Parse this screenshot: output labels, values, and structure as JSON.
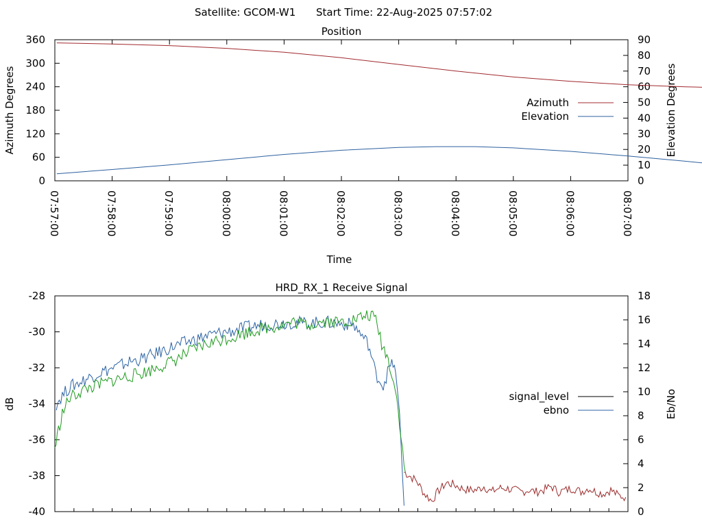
{
  "header": {
    "satellite_label": "Satellite: GCOM-W1",
    "start_time_label": "Start Time: 22-Aug-2025 07:57:02"
  },
  "chart_data": [
    {
      "type": "line",
      "title": "Position",
      "xlabel": "Time",
      "ylabel": "Azimuth Degrees",
      "y2label": "Elevation Degrees",
      "x_ticks": [
        "07:57:00",
        "07:58:00",
        "07:59:00",
        "08:00:00",
        "08:01:00",
        "08:02:00",
        "08:03:00",
        "08:04:00",
        "08:05:00",
        "08:06:00",
        "08:07:00"
      ],
      "y_ticks": [
        "0",
        "60",
        "120",
        "180",
        "240",
        "300",
        "360"
      ],
      "y2_ticks": [
        "0",
        "10",
        "20",
        "30",
        "40",
        "50",
        "60",
        "70",
        "80",
        "90"
      ],
      "ylim": [
        0,
        360
      ],
      "y2lim": [
        0,
        90
      ],
      "x_seconds_range": [
        0,
        600
      ],
      "legend_position": "right",
      "series": [
        {
          "name": "Azimuth",
          "axis": "left",
          "color": "#a0282d",
          "points": [
            [
              2,
              352
            ],
            [
              60,
              349
            ],
            [
              120,
              345
            ],
            [
              180,
              338
            ],
            [
              240,
              328
            ],
            [
              300,
              314
            ],
            [
              360,
              297
            ],
            [
              420,
              280
            ],
            [
              480,
              265
            ],
            [
              540,
              254
            ],
            [
              600,
              245
            ],
            [
              660,
              240
            ],
            [
              720,
              236
            ],
            [
              765,
              235
            ]
          ]
        },
        {
          "name": "Elevation",
          "axis": "right",
          "color": "#2b5f9e",
          "points": [
            [
              2,
              4.5
            ],
            [
              60,
              7.2
            ],
            [
              120,
              10.2
            ],
            [
              180,
              13.5
            ],
            [
              240,
              16.8
            ],
            [
              300,
              19.5
            ],
            [
              360,
              21.3
            ],
            [
              400,
              21.8
            ],
            [
              440,
              21.8
            ],
            [
              480,
              21.0
            ],
            [
              540,
              18.8
            ],
            [
              600,
              15.8
            ],
            [
              660,
              12.5
            ],
            [
              720,
              9.0
            ],
            [
              765,
              5.5
            ]
          ]
        }
      ]
    },
    {
      "type": "line",
      "title": "HRD_RX_1 Receive Signal",
      "ylabel": "dB",
      "y2label": "Eb/No",
      "y_ticks": [
        "-40",
        "-38",
        "-36",
        "-34",
        "-32",
        "-30",
        "-28"
      ],
      "y2_ticks": [
        "0",
        "2",
        "4",
        "6",
        "8",
        "10",
        "12",
        "14",
        "16",
        "18"
      ],
      "ylim": [
        -40,
        -28
      ],
      "y2lim": [
        0,
        18
      ],
      "legend_position": "right",
      "series": [
        {
          "name": "signal_level",
          "axis": "left",
          "color": "#9b2a2a",
          "points": [
            [
              468,
              -37.8
            ],
            [
              475,
              -38.0
            ],
            [
              485,
              -38.3
            ],
            [
              495,
              -39.0
            ],
            [
              505,
              -39.4
            ],
            [
              515,
              -38.8
            ],
            [
              525,
              -38.4
            ],
            [
              535,
              -38.5
            ],
            [
              545,
              -38.7
            ],
            [
              555,
              -38.8
            ],
            [
              565,
              -38.8
            ],
            [
              575,
              -38.6
            ],
            [
              585,
              -38.9
            ],
            [
              595,
              -38.7
            ],
            [
              605,
              -38.7
            ],
            [
              615,
              -38.8
            ],
            [
              625,
              -38.9
            ],
            [
              635,
              -38.8
            ],
            [
              645,
              -38.9
            ],
            [
              655,
              -38.8
            ],
            [
              665,
              -38.6
            ],
            [
              675,
              -38.9
            ],
            [
              685,
              -38.8
            ],
            [
              695,
              -38.7
            ],
            [
              705,
              -38.9
            ],
            [
              715,
              -38.7
            ],
            [
              725,
              -38.9
            ],
            [
              735,
              -39.0
            ],
            [
              745,
              -38.8
            ],
            [
              755,
              -39.1
            ],
            [
              765,
              -39.2
            ]
          ]
        },
        {
          "name": "ebno",
          "axis": "right",
          "color": "#2b62a3",
          "points": [
            [
              2,
              9.0
            ],
            [
              10,
              9.7
            ],
            [
              20,
              10.4
            ],
            [
              40,
              11.0
            ],
            [
              60,
              11.6
            ],
            [
              80,
              12.0
            ],
            [
              100,
              12.5
            ],
            [
              120,
              12.8
            ],
            [
              140,
              13.3
            ],
            [
              160,
              13.8
            ],
            [
              180,
              14.2
            ],
            [
              200,
              14.6
            ],
            [
              220,
              14.9
            ],
            [
              240,
              15.1
            ],
            [
              260,
              15.4
            ],
            [
              280,
              15.6
            ],
            [
              300,
              15.7
            ],
            [
              320,
              15.8
            ],
            [
              340,
              15.7
            ],
            [
              360,
              15.8
            ],
            [
              380,
              15.7
            ],
            [
              400,
              15.6
            ],
            [
              410,
              14.8
            ],
            [
              420,
              14.0
            ],
            [
              430,
              11.5
            ],
            [
              440,
              10.5
            ],
            [
              448,
              12.0
            ],
            [
              455,
              12.4
            ],
            [
              462,
              8.0
            ],
            [
              466,
              3.0
            ],
            [
              468,
              0.5
            ]
          ]
        },
        {
          "name": "",
          "axis": "right",
          "color": "#1e9a1e",
          "points": [
            [
              0,
              5.3
            ],
            [
              5,
              6.8
            ],
            [
              10,
              8.2
            ],
            [
              20,
              9.5
            ],
            [
              40,
              10.2
            ],
            [
              60,
              10.6
            ],
            [
              80,
              11.0
            ],
            [
              100,
              11.3
            ],
            [
              120,
              11.6
            ],
            [
              140,
              12.1
            ],
            [
              160,
              12.6
            ],
            [
              180,
              13.3
            ],
            [
              200,
              13.9
            ],
            [
              220,
              14.3
            ],
            [
              240,
              14.6
            ],
            [
              260,
              15.0
            ],
            [
              280,
              15.3
            ],
            [
              300,
              15.5
            ],
            [
              320,
              15.8
            ],
            [
              340,
              15.6
            ],
            [
              360,
              15.9
            ],
            [
              380,
              15.8
            ],
            [
              400,
              16.0
            ],
            [
              410,
              16.2
            ],
            [
              420,
              16.4
            ],
            [
              430,
              16.1
            ],
            [
              438,
              14.0
            ],
            [
              445,
              13.0
            ],
            [
              452,
              11.5
            ],
            [
              458,
              9.5
            ],
            [
              462,
              7.5
            ],
            [
              466,
              5.0
            ],
            [
              470,
              3.2
            ]
          ]
        }
      ]
    }
  ]
}
